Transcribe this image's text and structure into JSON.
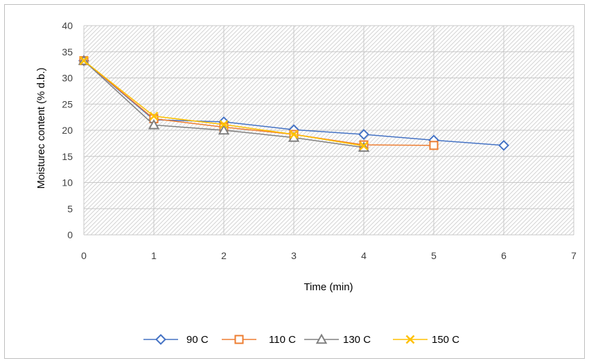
{
  "chart_data": {
    "type": "scatter",
    "xlabel": "Time (min)",
    "ylabel": "Moisturec content (% d.b.)",
    "xlim": [
      0,
      7
    ],
    "ylim": [
      0,
      40
    ],
    "xticks": [
      "0",
      "1",
      "2",
      "3",
      "4",
      "5",
      "6",
      "7"
    ],
    "yticks": [
      "0",
      "5",
      "10",
      "15",
      "20",
      "25",
      "30",
      "35",
      "40"
    ],
    "grid": true,
    "legend_position": "bottom",
    "series": [
      {
        "name": "90 C",
        "color": "#4472C4",
        "marker": "diamond",
        "x": [
          0,
          1,
          2,
          3,
          4,
          5,
          6
        ],
        "y": [
          33.3,
          22.0,
          21.6,
          20.1,
          19.2,
          18.1,
          17.1
        ]
      },
      {
        "name": "110 C",
        "color": "#ED7D31",
        "marker": "square",
        "x": [
          0,
          1,
          2,
          3,
          4,
          5
        ],
        "y": [
          33.3,
          22.2,
          20.6,
          19.2,
          17.2,
          17.1
        ]
      },
      {
        "name": "130 C",
        "color": "#808080",
        "marker": "triangle",
        "x": [
          0,
          1,
          2,
          3,
          4
        ],
        "y": [
          33.3,
          21.0,
          20.0,
          18.6,
          16.7
        ]
      },
      {
        "name": "150 C",
        "color": "#FFC000",
        "marker": "x",
        "x": [
          0,
          1,
          2,
          3,
          4
        ],
        "y": [
          33.3,
          22.7,
          21.1,
          19.2,
          17.0
        ]
      }
    ]
  }
}
